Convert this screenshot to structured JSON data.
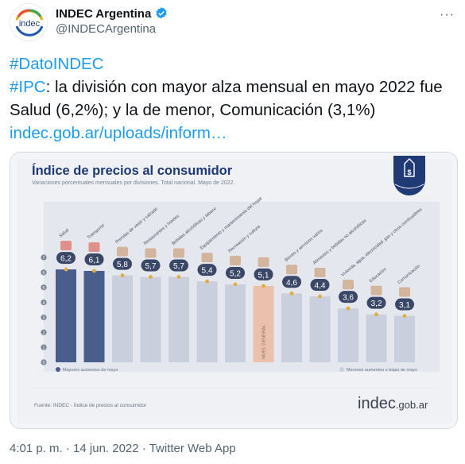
{
  "header": {
    "display_name": "INDEC Argentina",
    "handle": "@INDECArgentina",
    "avatar_text": "indec",
    "more_label": "···"
  },
  "tweet": {
    "hashtag1": "#DatoINDEC",
    "hashtag2": "#IPC",
    "body": ": la división con mayor alza mensual en mayo 2022 fue Salud (6,2%); y la de menor, Comunicación (3,1%) ",
    "link": "indec.gob.ar/uploads/inform…"
  },
  "infographic": {
    "title": "Índice de precios al consumidor",
    "subtitle": "Variaciones porcentuales mensuales por divisiones. Total nacional. Mayo de 2022.",
    "legend_high": "Mayores aumentos de mayo",
    "legend_low": "Menores aumentos o bajas de mayo",
    "source": "Fuente: INDEC - Índice de precios al consumidor",
    "brand": "indec",
    "brand_suffix": ".gob.ar",
    "colors": {
      "high": "#4a5e8c",
      "mid": "#c9cfdc",
      "general": "#ebc1ac",
      "title": "#1f3a74",
      "marker": "#e0ad3a"
    }
  },
  "chart_data": {
    "type": "bar",
    "categories": [
      "Salud",
      "Transporte",
      "Prendas de vestir y calzado",
      "Restaurantes y hoteles",
      "Bebidas alcohólicas y tabaco",
      "Equipamiento y mantenimiento del hogar",
      "Recreación y cultura",
      "NIVEL GENERAL",
      "Bienes y servicios varios",
      "Alimentos y bebidas no alcohólicas",
      "Vivienda, agua, electricidad, gas y otros combustibles",
      "Educación",
      "Comunicación"
    ],
    "values": [
      6.2,
      6.1,
      5.8,
      5.7,
      5.7,
      5.4,
      5.2,
      5.1,
      4.6,
      4.4,
      3.6,
      3.2,
      3.1
    ],
    "value_labels": [
      "6,2",
      "6,1",
      "5,8",
      "5,7",
      "5,7",
      "5,4",
      "5,2",
      "5,1",
      "4,6",
      "4,4",
      "3,6",
      "3,2",
      "3,1"
    ],
    "groups": [
      "high",
      "high",
      "mid",
      "mid",
      "mid",
      "mid",
      "mid",
      "general",
      "mid",
      "mid",
      "mid",
      "mid",
      "mid"
    ],
    "y_ticks": [
      7,
      6,
      5,
      4,
      3,
      2,
      1,
      0
    ],
    "ylim": [
      0,
      7
    ]
  },
  "footer": {
    "time": "4:01 p. m.",
    "sep": " · ",
    "date": "14 jun. 2022",
    "client": "Twitter Web App"
  }
}
